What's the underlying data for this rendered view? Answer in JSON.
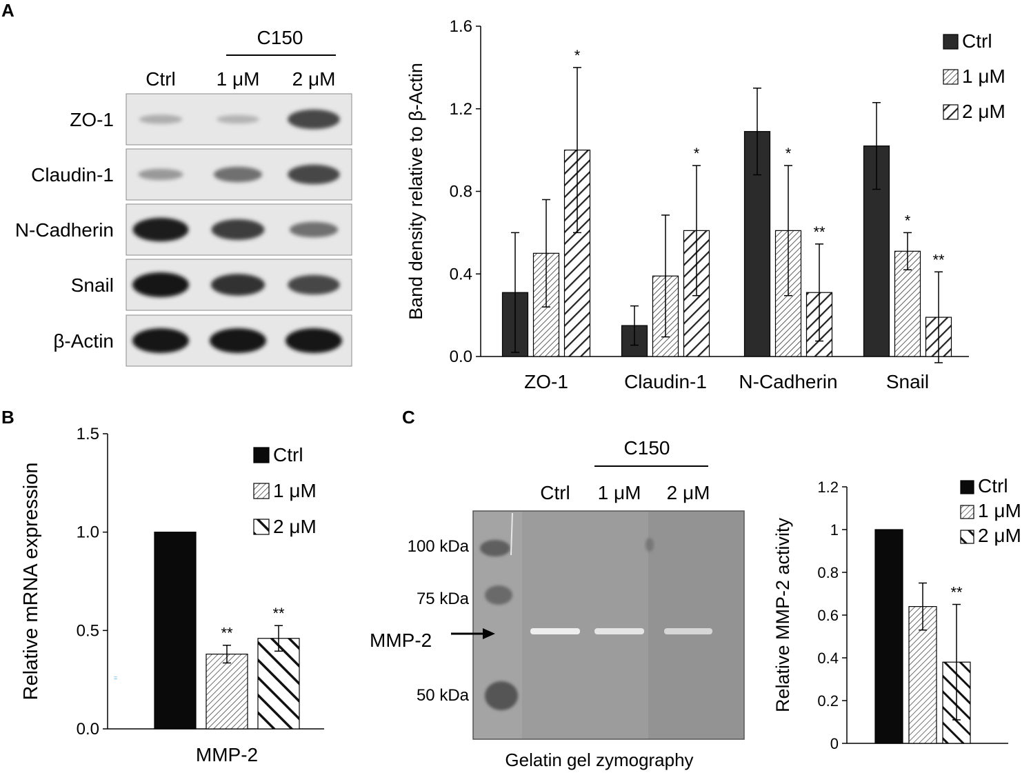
{
  "panels": {
    "A": {
      "letter": "A"
    },
    "B": {
      "letter": "B"
    },
    "C": {
      "letter": "C"
    }
  },
  "blotA": {
    "group_label": "C150",
    "lanes": [
      "Ctrl",
      "1 μM",
      "2 μM"
    ],
    "rows": [
      {
        "label": "ZO-1",
        "bands": [
          0.25,
          0.22,
          0.75
        ]
      },
      {
        "label": "Claudin-1",
        "bands": [
          0.35,
          0.55,
          0.75
        ]
      },
      {
        "label": "N-Cadherin",
        "bands": [
          0.95,
          0.8,
          0.55
        ]
      },
      {
        "label": "Snail",
        "bands": [
          1.0,
          0.85,
          0.75
        ]
      },
      {
        "label": "β-Actin",
        "bands": [
          1.0,
          1.0,
          1.0
        ]
      }
    ]
  },
  "zymoC": {
    "group_label": "C150",
    "lanes": [
      "Ctrl",
      "1 μM",
      "2 μM"
    ],
    "markers": [
      "100 kDa",
      "75 kDa",
      "50 kDa"
    ],
    "band_label": "MMP-2",
    "caption": "Gelatin gel zymography"
  },
  "chart_data": [
    {
      "type": "bar",
      "panel": "A",
      "ylabel": "Band density relative to β-Actin",
      "xlabel": "",
      "ylim": [
        0,
        1.6
      ],
      "yticks": [
        "0.0",
        "0.4",
        "0.8",
        "1.2",
        "1.6"
      ],
      "categories": [
        "ZO-1",
        "Claudin-1",
        "N-Cadherin",
        "Snail"
      ],
      "legend_position": "top-right",
      "series": [
        {
          "name": "Ctrl",
          "values": [
            0.31,
            0.15,
            1.09,
            1.02
          ],
          "errors": [
            0.29,
            0.095,
            0.21,
            0.21
          ],
          "sig": [
            "",
            "",
            "",
            ""
          ]
        },
        {
          "name": "1 μM",
          "values": [
            0.5,
            0.39,
            0.61,
            0.51
          ],
          "errors": [
            0.26,
            0.295,
            0.315,
            0.09
          ],
          "sig": [
            "",
            "",
            "*",
            "*"
          ]
        },
        {
          "name": "2 μM",
          "values": [
            1.0,
            0.61,
            0.31,
            0.19
          ],
          "errors": [
            0.4,
            0.315,
            0.235,
            0.22
          ],
          "sig": [
            "*",
            "*",
            "**",
            "**"
          ]
        }
      ]
    },
    {
      "type": "bar",
      "panel": "B",
      "ylabel": "Relative mRNA expression",
      "xlabel": "MMP-2",
      "ylim": [
        0,
        1.5
      ],
      "yticks": [
        "0.0",
        "0.5",
        "1.0",
        "1.5"
      ],
      "categories": [
        "MMP-2"
      ],
      "legend_position": "top-right",
      "series": [
        {
          "name": "Ctrl",
          "values": [
            1.0
          ],
          "errors": [
            0.0
          ],
          "sig": [
            ""
          ]
        },
        {
          "name": "1 μM",
          "values": [
            0.38
          ],
          "errors": [
            0.045
          ],
          "sig": [
            "**"
          ]
        },
        {
          "name": "2 μM",
          "values": [
            0.46
          ],
          "errors": [
            0.065
          ],
          "sig": [
            "**"
          ]
        }
      ]
    },
    {
      "type": "bar",
      "panel": "C",
      "ylabel": "Relative MMP-2 activity",
      "xlabel": "",
      "ylim": [
        0,
        1.2
      ],
      "yticks": [
        "0",
        "0.2",
        "0.4",
        "0.6",
        "0.8",
        "1",
        "1.2"
      ],
      "categories": [
        ""
      ],
      "legend_position": "top-right",
      "series": [
        {
          "name": "Ctrl",
          "values": [
            1.0
          ],
          "errors": [
            0.0
          ],
          "sig": [
            ""
          ]
        },
        {
          "name": "1 μM",
          "values": [
            0.64
          ],
          "errors": [
            0.11
          ],
          "sig": [
            ""
          ]
        },
        {
          "name": "2 μM",
          "values": [
            0.38
          ],
          "errors": [
            0.27
          ],
          "sig": [
            "**"
          ]
        }
      ]
    }
  ]
}
